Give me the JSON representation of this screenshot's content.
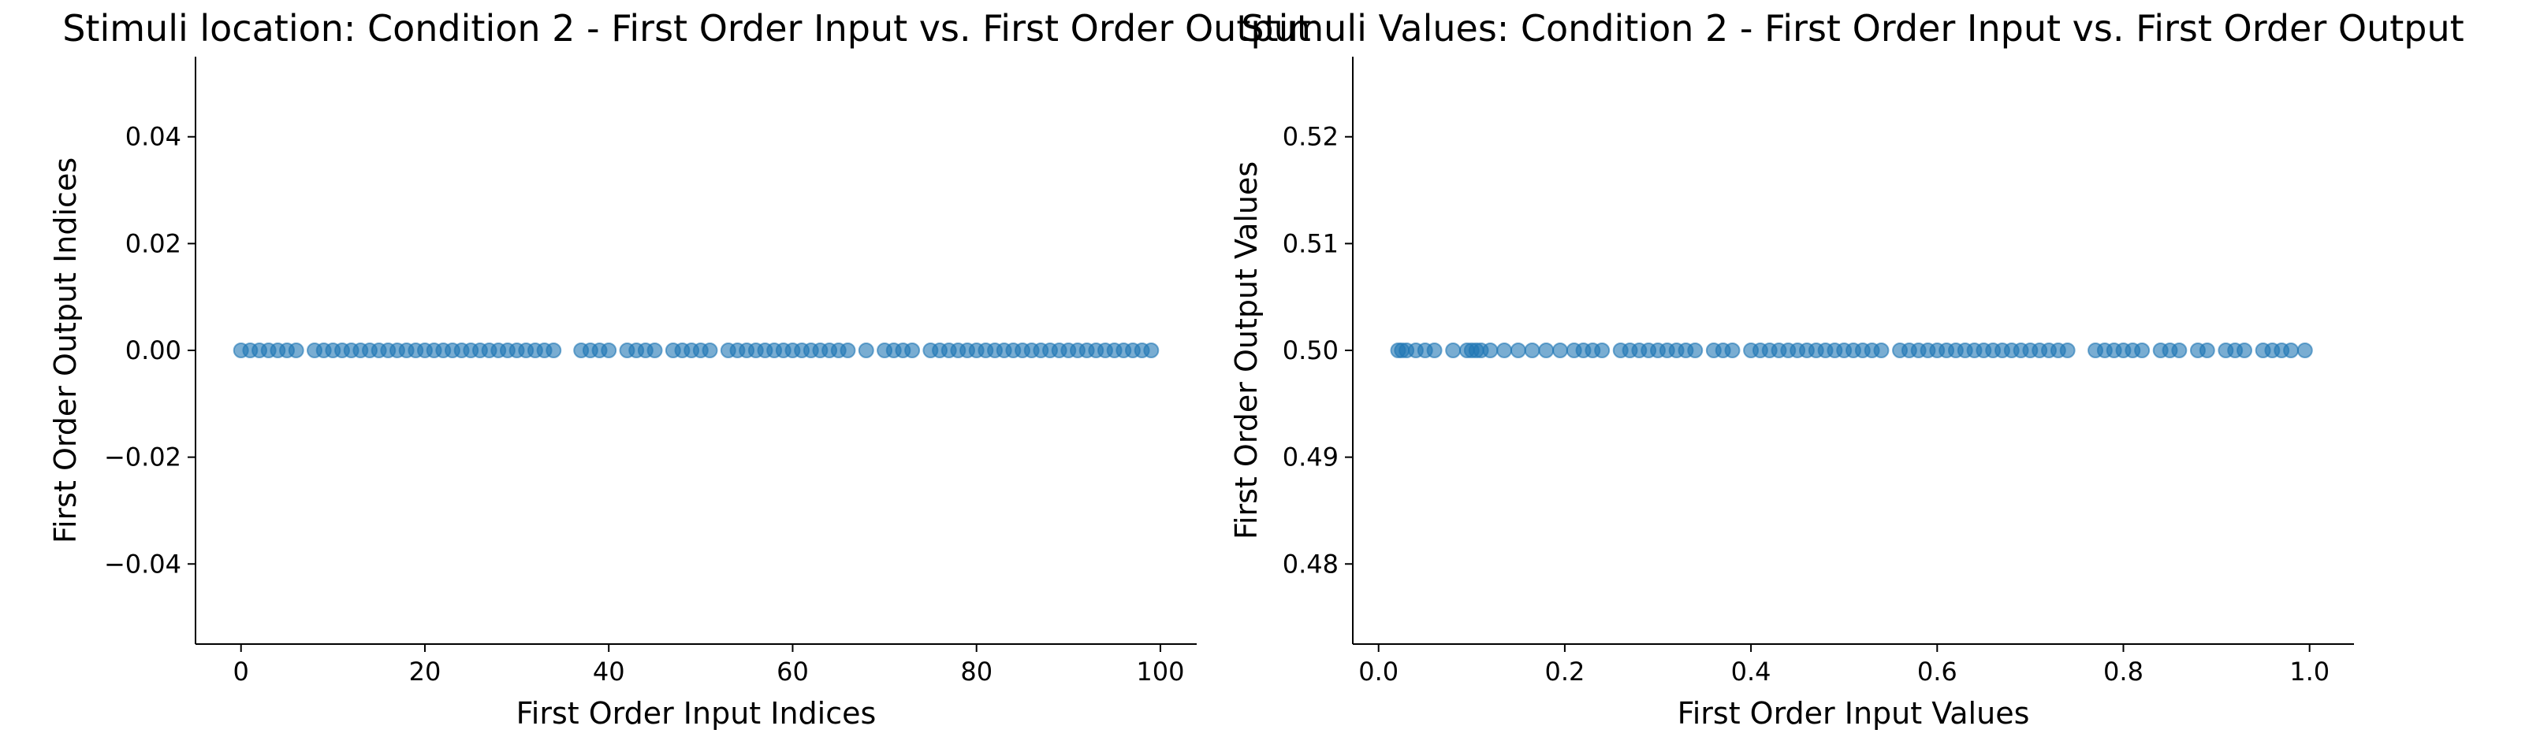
{
  "chart_data": [
    {
      "type": "scatter",
      "title": "Stimuli location: Condition 2 - First Order Input vs. First Order Output",
      "xlabel": "First Order Input Indices",
      "ylabel": "First Order Output Indices",
      "xlim": [
        -4.95,
        103.95
      ],
      "ylim": [
        -0.055,
        0.055
      ],
      "xticks": [
        0,
        20,
        40,
        60,
        80,
        100
      ],
      "xtick_labels": [
        "0",
        "20",
        "40",
        "60",
        "80",
        "100"
      ],
      "yticks": [
        -0.04,
        -0.02,
        0.0,
        0.02,
        0.04
      ],
      "ytick_labels": [
        "−0.04",
        "−0.02",
        "0.00",
        "0.02",
        "0.04"
      ],
      "grid": false,
      "marker_color": "#1f77b4",
      "x": [
        0,
        1,
        2,
        3,
        4,
        5,
        6,
        8,
        9,
        10,
        11,
        12,
        13,
        14,
        15,
        16,
        17,
        18,
        19,
        20,
        21,
        22,
        23,
        24,
        25,
        26,
        27,
        28,
        29,
        30,
        31,
        32,
        33,
        34,
        37,
        38,
        39,
        40,
        42,
        43,
        44,
        45,
        47,
        48,
        49,
        50,
        51,
        53,
        54,
        55,
        56,
        57,
        58,
        59,
        60,
        61,
        62,
        63,
        64,
        65,
        66,
        68,
        70,
        71,
        72,
        73,
        75,
        76,
        77,
        78,
        79,
        80,
        81,
        82,
        83,
        84,
        85,
        86,
        87,
        88,
        89,
        90,
        91,
        92,
        93,
        94,
        95,
        96,
        97,
        98,
        99
      ],
      "y_constant": 0.0
    },
    {
      "type": "scatter",
      "title": "Stimuli Values: Condition 2 - First Order Input vs. First Order Output",
      "xlabel": "First Order Input Values",
      "ylabel": "First Order Output Values",
      "xlim": [
        -0.0277,
        1.0477
      ],
      "ylim": [
        0.4725,
        0.5275
      ],
      "xticks": [
        0.0,
        0.2,
        0.4,
        0.6,
        0.8,
        1.0
      ],
      "xtick_labels": [
        "0.0",
        "0.2",
        "0.4",
        "0.6",
        "0.8",
        "1.0"
      ],
      "yticks": [
        0.48,
        0.49,
        0.5,
        0.51,
        0.52
      ],
      "ytick_labels": [
        "0.48",
        "0.49",
        "0.50",
        "0.51",
        "0.52"
      ],
      "grid": false,
      "marker_color": "#1f77b4",
      "x": [
        0.021,
        0.025,
        0.03,
        0.04,
        0.05,
        0.06,
        0.08,
        0.095,
        0.1,
        0.105,
        0.11,
        0.12,
        0.135,
        0.15,
        0.165,
        0.18,
        0.195,
        0.21,
        0.22,
        0.23,
        0.24,
        0.26,
        0.27,
        0.28,
        0.29,
        0.3,
        0.31,
        0.32,
        0.33,
        0.34,
        0.36,
        0.37,
        0.38,
        0.4,
        0.41,
        0.42,
        0.43,
        0.44,
        0.45,
        0.46,
        0.47,
        0.48,
        0.49,
        0.5,
        0.51,
        0.52,
        0.53,
        0.54,
        0.56,
        0.57,
        0.58,
        0.59,
        0.6,
        0.61,
        0.62,
        0.63,
        0.64,
        0.65,
        0.66,
        0.67,
        0.68,
        0.69,
        0.7,
        0.71,
        0.72,
        0.73,
        0.74,
        0.77,
        0.78,
        0.79,
        0.8,
        0.81,
        0.82,
        0.84,
        0.85,
        0.86,
        0.88,
        0.89,
        0.91,
        0.92,
        0.93,
        0.95,
        0.96,
        0.97,
        0.98,
        0.995
      ],
      "y_constant": 0.5
    }
  ]
}
